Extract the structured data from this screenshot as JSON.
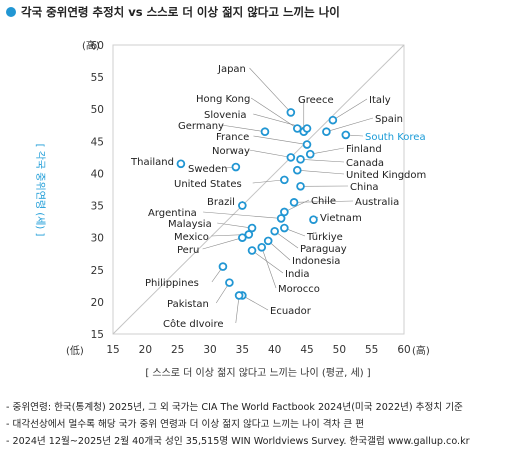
{
  "title": "각국 중위연령 추정치 vs 스스로 더 이상 젊지 않다고 느끼는 나이",
  "chart_data": {
    "type": "scatter",
    "title": "각국 중위연령 추정치 vs 스스로 더 이상 젊지 않다고 느끼는 나이",
    "xlabel": "[ 스스로 더 이상 젊지 않다고 느끼는 나이 (평균, 세) ]",
    "ylabel": "[ 각국 중위연령 (세) ]",
    "x_min_label": "(低)",
    "x_max_label": "(高)",
    "y_min_label": "(低)",
    "y_max_label": "(高)",
    "xlim": [
      15,
      60
    ],
    "ylim": [
      15,
      60
    ],
    "xticks": [
      15,
      20,
      25,
      30,
      35,
      40,
      45,
      50,
      55,
      60
    ],
    "yticks": [
      15,
      20,
      25,
      30,
      35,
      40,
      45,
      50,
      55,
      60
    ],
    "reference_line": "y = x",
    "highlight_color": "#1a9bd7",
    "marker_color": "#2196d3",
    "points": [
      {
        "label": "Japan",
        "x": 42.5,
        "y": 49.5
      },
      {
        "label": "Hong Kong",
        "x": 43.5,
        "y": 47.0
      },
      {
        "label": "Greece",
        "x": 44.5,
        "y": 46.5
      },
      {
        "label": "Italy",
        "x": 49.0,
        "y": 48.3
      },
      {
        "label": "Slovenia",
        "x": 45.0,
        "y": 47.0
      },
      {
        "label": "Germany",
        "x": 38.5,
        "y": 46.5
      },
      {
        "label": "Spain",
        "x": 48.0,
        "y": 46.5
      },
      {
        "label": "South Korea",
        "x": 51.0,
        "y": 46.0
      },
      {
        "label": "France",
        "x": 45.0,
        "y": 44.5
      },
      {
        "label": "Finland",
        "x": 45.5,
        "y": 43.0
      },
      {
        "label": "Norway",
        "x": 42.5,
        "y": 42.5
      },
      {
        "label": "Canada",
        "x": 44.0,
        "y": 42.2
      },
      {
        "label": "Thailand",
        "x": 25.5,
        "y": 41.5
      },
      {
        "label": "Sweden",
        "x": 34.0,
        "y": 41.0
      },
      {
        "label": "United Kingdom",
        "x": 43.5,
        "y": 40.5
      },
      {
        "label": "United States",
        "x": 41.5,
        "y": 39.0
      },
      {
        "label": "China",
        "x": 44.0,
        "y": 38.0
      },
      {
        "label": "Brazil",
        "x": 35.0,
        "y": 35.0
      },
      {
        "label": "Australia",
        "x": 43.0,
        "y": 35.5
      },
      {
        "label": "Chile",
        "x": 41.5,
        "y": 34.0
      },
      {
        "label": "Argentina",
        "x": 41.0,
        "y": 33.0
      },
      {
        "label": "Vietnam",
        "x": 46.0,
        "y": 32.8
      },
      {
        "label": "Malaysia",
        "x": 36.5,
        "y": 31.5
      },
      {
        "label": "Türkiye",
        "x": 41.5,
        "y": 31.5
      },
      {
        "label": "Paraguay",
        "x": 40.0,
        "y": 31.0
      },
      {
        "label": "Mexico",
        "x": 36.0,
        "y": 30.5
      },
      {
        "label": "Indonesia",
        "x": 39.0,
        "y": 29.5
      },
      {
        "label": "Peru",
        "x": 35.0,
        "y": 30.0
      },
      {
        "label": "India",
        "x": 36.5,
        "y": 28.0
      },
      {
        "label": "Philippines",
        "x": 32.0,
        "y": 25.5
      },
      {
        "label": "Morocco",
        "x": 38.0,
        "y": 28.5
      },
      {
        "label": "Pakistan",
        "x": 33.0,
        "y": 23.0
      },
      {
        "label": "Ecuador",
        "x": 35.0,
        "y": 21.0
      },
      {
        "label": "Côte dIvoire",
        "x": 34.5,
        "y": 21.0
      }
    ]
  },
  "notes": [
    "- 중위연령: 한국(통계청) 2025년, 그 외 국가는 CIA The World Factbook 2024년(미국 2022년) 추정치 기준",
    "- 대각선상에서 멀수록 해당 국가 중위 연령과 더 이상 젊지 않다고 느끼는 나이 격차 큰 편",
    "- 2024년 12월~2025년 2월 40개국 성인 35,515명 WIN Worldviews Survey. 한국갤럽 www.gallup.co.kr"
  ]
}
